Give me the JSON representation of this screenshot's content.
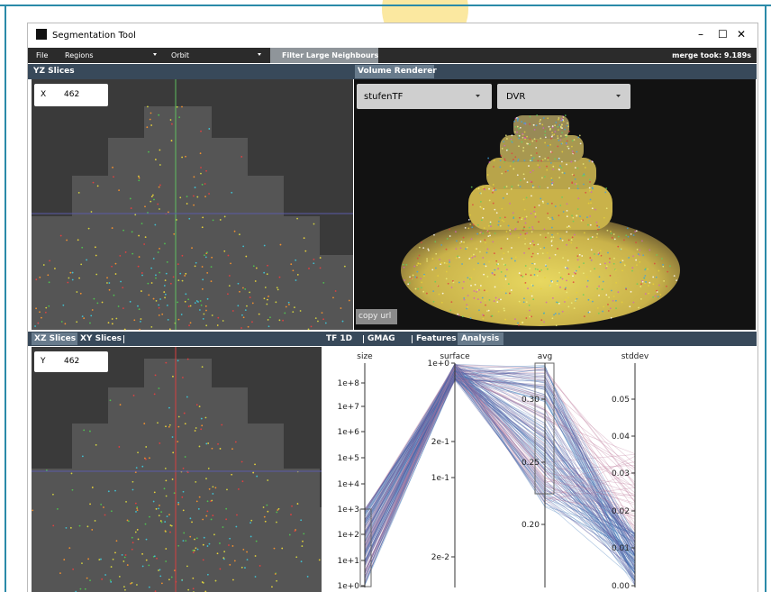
{
  "window": {
    "title": "Segmentation Tool",
    "controls": [
      "–",
      "☐",
      "✕"
    ]
  },
  "menu": {
    "items": [
      "File",
      "Regions",
      "Orbit"
    ],
    "active_tab": "Filter Large Neighbours",
    "status": "merge took: 9.189s"
  },
  "top_left": {
    "tab": "YZ Slices",
    "input": {
      "label": "X",
      "value": 462
    }
  },
  "top_right": {
    "tab": "Volume Renderer",
    "dropdowns": [
      "stufenTF",
      "DVR"
    ],
    "button": "copy url"
  },
  "bottom_left": {
    "tabs": [
      "XZ Slices",
      "XY Slices"
    ],
    "input": {
      "label": "Y",
      "value": 462
    }
  },
  "bottom_right": {
    "tabs": [
      "TF 1D",
      "GMAG",
      "Features",
      "Analysis"
    ],
    "axes": [
      {
        "name": "size",
        "ticks": [
          "1e+8",
          "1e+7",
          "1e+6",
          "1e+5",
          "1e+4",
          "1e+3",
          "1e+2",
          "1e+1",
          "1e+0"
        ]
      },
      {
        "name": "surface",
        "ticks": [
          "1e+0",
          "2e-1",
          "1e-1",
          "2e-2"
        ]
      },
      {
        "name": "avg",
        "ticks": [
          "0.30",
          "0.25",
          "0.20"
        ]
      },
      {
        "name": "stddev",
        "ticks": [
          "0.05",
          "0.04",
          "0.03",
          "0.02",
          "0.01",
          "0.00"
        ]
      }
    ]
  }
}
